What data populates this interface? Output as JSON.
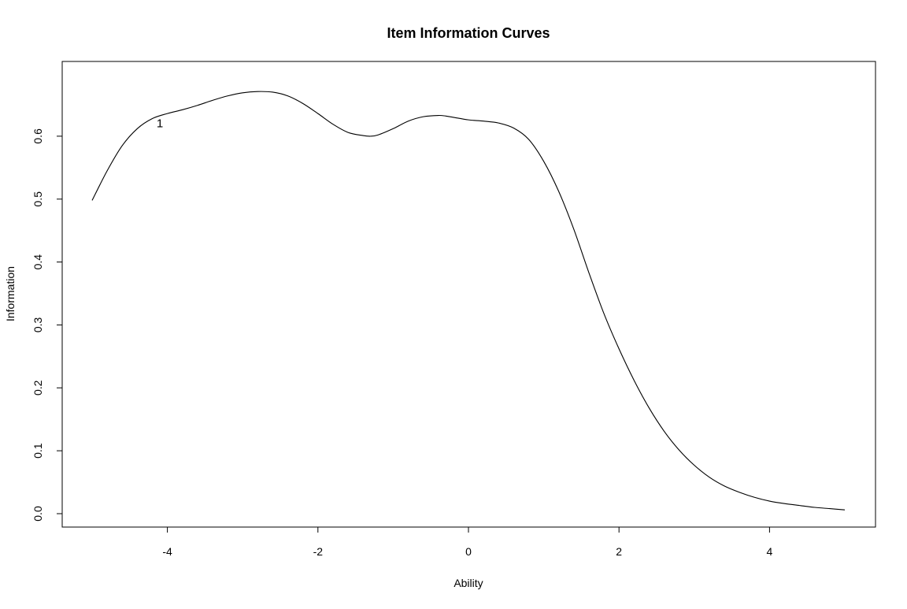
{
  "chart_data": {
    "type": "line",
    "title": "Item Information Curves",
    "xlabel": "Ability",
    "ylabel": "Information",
    "xlim": [
      -5.0,
      5.0
    ],
    "ylim": [
      0.0,
      0.69
    ],
    "x_ticks": [
      -4,
      -2,
      0,
      2,
      4
    ],
    "x_tick_labels": [
      "-4",
      "-2",
      "0",
      "2",
      "4"
    ],
    "y_ticks": [
      0.0,
      0.1,
      0.2,
      0.3,
      0.4,
      0.5,
      0.6
    ],
    "y_tick_labels": [
      "0.0",
      "0.1",
      "0.2",
      "0.3",
      "0.4",
      "0.5",
      "0.6"
    ],
    "grid": false,
    "series": [
      {
        "name": "1",
        "label": "1",
        "label_at": {
          "x": -4.1,
          "y": 0.622
        },
        "x": [
          -5.0,
          -4.8,
          -4.6,
          -4.4,
          -4.2,
          -4.0,
          -3.8,
          -3.6,
          -3.4,
          -3.2,
          -3.0,
          -2.8,
          -2.6,
          -2.4,
          -2.2,
          -2.0,
          -1.8,
          -1.6,
          -1.4,
          -1.3,
          -1.2,
          -1.0,
          -0.8,
          -0.6,
          -0.4,
          -0.3,
          -0.2,
          0.0,
          0.2,
          0.4,
          0.6,
          0.8,
          1.0,
          1.2,
          1.4,
          1.6,
          1.8,
          2.0,
          2.2,
          2.4,
          2.6,
          2.8,
          3.0,
          3.2,
          3.4,
          3.6,
          3.8,
          4.0,
          4.2,
          4.4,
          4.6,
          4.8,
          5.0
        ],
        "y": [
          0.498,
          0.545,
          0.585,
          0.612,
          0.628,
          0.636,
          0.642,
          0.649,
          0.657,
          0.664,
          0.669,
          0.671,
          0.67,
          0.664,
          0.652,
          0.636,
          0.619,
          0.606,
          0.601,
          0.6,
          0.602,
          0.612,
          0.624,
          0.631,
          0.633,
          0.632,
          0.63,
          0.626,
          0.624,
          0.621,
          0.613,
          0.595,
          0.56,
          0.512,
          0.452,
          0.383,
          0.318,
          0.262,
          0.212,
          0.168,
          0.131,
          0.101,
          0.077,
          0.058,
          0.044,
          0.034,
          0.026,
          0.02,
          0.016,
          0.013,
          0.01,
          0.008,
          0.006
        ]
      }
    ]
  }
}
